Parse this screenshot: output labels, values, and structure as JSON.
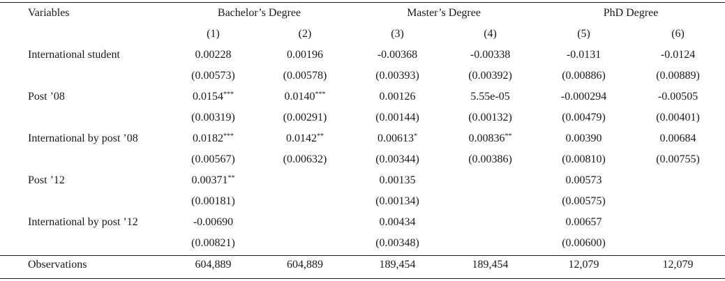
{
  "header": {
    "variables_label": "Variables",
    "groups": [
      "Bachelor’s Degree",
      "Master’s Degree",
      "PhD Degree"
    ],
    "columns": [
      "(1)",
      "(2)",
      "(3)",
      "(4)",
      "(5)",
      "(6)"
    ]
  },
  "rows": [
    {
      "label": "International student",
      "coef": [
        {
          "v": "0.00228",
          "s": ""
        },
        {
          "v": "0.00196",
          "s": ""
        },
        {
          "v": "-0.00368",
          "s": ""
        },
        {
          "v": "-0.00338",
          "s": ""
        },
        {
          "v": "-0.0131",
          "s": ""
        },
        {
          "v": "-0.0124",
          "s": ""
        }
      ],
      "se": [
        "(0.00573)",
        "(0.00578)",
        "(0.00393)",
        "(0.00392)",
        "(0.00886)",
        "(0.00889)"
      ]
    },
    {
      "label": "Post ’08",
      "coef": [
        {
          "v": "0.0154",
          "s": "***"
        },
        {
          "v": "0.0140",
          "s": "***"
        },
        {
          "v": "0.00126",
          "s": ""
        },
        {
          "v": "5.55e-05",
          "s": ""
        },
        {
          "v": "-0.000294",
          "s": ""
        },
        {
          "v": "-0.00505",
          "s": ""
        }
      ],
      "se": [
        "(0.00319)",
        "(0.00291)",
        "(0.00144)",
        "(0.00132)",
        "(0.00479)",
        "(0.00401)"
      ]
    },
    {
      "label": "International by post ’08",
      "coef": [
        {
          "v": "0.0182",
          "s": "***"
        },
        {
          "v": "0.0142",
          "s": "**"
        },
        {
          "v": "0.00613",
          "s": "*"
        },
        {
          "v": "0.00836",
          "s": "**"
        },
        {
          "v": "0.00390",
          "s": ""
        },
        {
          "v": "0.00684",
          "s": ""
        }
      ],
      "se": [
        "(0.00567)",
        "(0.00632)",
        "(0.00344)",
        "(0.00386)",
        "(0.00810)",
        "(0.00755)"
      ]
    },
    {
      "label": "Post ’12",
      "coef": [
        {
          "v": "0.00371",
          "s": "**"
        },
        {
          "v": "",
          "s": ""
        },
        {
          "v": "0.00135",
          "s": ""
        },
        {
          "v": "",
          "s": ""
        },
        {
          "v": "0.00573",
          "s": ""
        },
        {
          "v": "",
          "s": ""
        }
      ],
      "se": [
        "(0.00181)",
        "",
        "(0.00134)",
        "",
        "(0.00575)",
        ""
      ]
    },
    {
      "label": "International by post ’12",
      "coef": [
        {
          "v": "-0.00690",
          "s": ""
        },
        {
          "v": "",
          "s": ""
        },
        {
          "v": "0.00434",
          "s": ""
        },
        {
          "v": "",
          "s": ""
        },
        {
          "v": "0.00657",
          "s": ""
        },
        {
          "v": "",
          "s": ""
        }
      ],
      "se": [
        "(0.00821)",
        "",
        "(0.00348)",
        "",
        "(0.00600)",
        ""
      ]
    }
  ],
  "observations": {
    "label": "Observations",
    "values": [
      "604,889",
      "604,889",
      "189,454",
      "189,454",
      "12,079",
      "12,079"
    ]
  }
}
